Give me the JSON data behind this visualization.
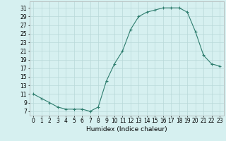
{
  "x": [
    0,
    1,
    2,
    3,
    4,
    5,
    6,
    7,
    8,
    9,
    10,
    11,
    12,
    13,
    14,
    15,
    16,
    17,
    18,
    19,
    20,
    21,
    22,
    23
  ],
  "y": [
    11,
    10,
    9,
    8,
    7.5,
    7.5,
    7.5,
    7,
    8,
    14,
    18,
    21,
    26,
    29,
    30,
    30.5,
    31,
    31,
    31,
    30,
    25.5,
    20,
    18,
    17.5
  ],
  "line_color": "#2e7d6e",
  "marker": "+",
  "marker_size": 3,
  "bg_color": "#d6f0f0",
  "grid_color": "#b8d8d8",
  "xlabel": "Humidex (Indice chaleur)",
  "xlim": [
    -0.5,
    23.5
  ],
  "ylim": [
    6,
    32.5
  ],
  "yticks": [
    7,
    9,
    11,
    13,
    15,
    17,
    19,
    21,
    23,
    25,
    27,
    29,
    31
  ],
  "xticks": [
    0,
    1,
    2,
    3,
    4,
    5,
    6,
    7,
    8,
    9,
    10,
    11,
    12,
    13,
    14,
    15,
    16,
    17,
    18,
    19,
    20,
    21,
    22,
    23
  ],
  "xlabel_fontsize": 6.5,
  "tick_fontsize": 5.5,
  "line_width": 0.8
}
